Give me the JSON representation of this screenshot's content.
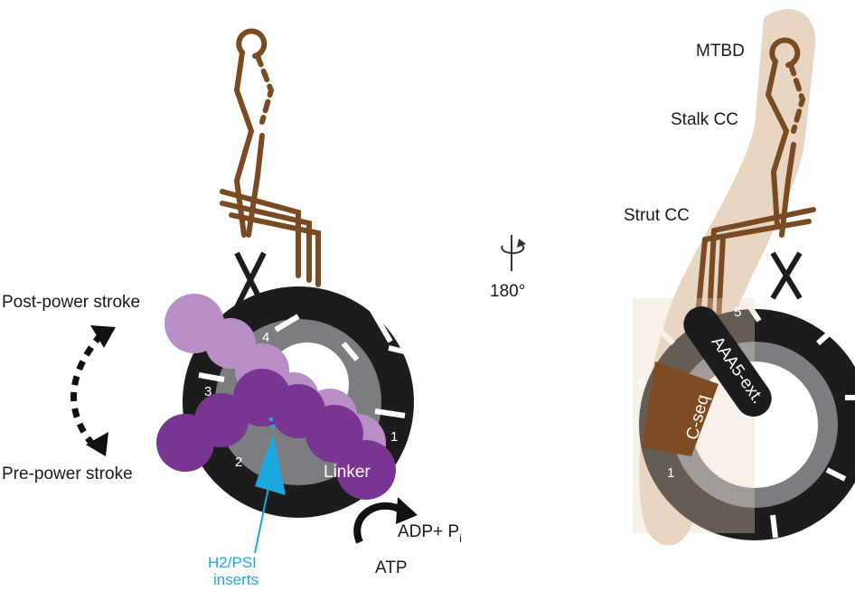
{
  "left_panel": {
    "post_power_stroke": "Post-power stroke",
    "pre_power_stroke": "Pre-power stroke",
    "linker": "Linker",
    "aaa_numbers": {
      "n1": "1",
      "n2": "2",
      "n3": "3",
      "n4": "4"
    },
    "adp_pi": "ADP+ P",
    "pi_subscript": "i",
    "atp": "ATP",
    "h2_psi": "H2/PSI",
    "inserts": "inserts"
  },
  "rotation": {
    "label": "180°"
  },
  "right_panel": {
    "mtbd": "MTBD",
    "stalk_cc": "Stalk CC",
    "strut_cc": "Strut CC",
    "aaa5_ext": "AAA5-ext.",
    "c_seq": "C-seq",
    "aaa_numbers": {
      "n1": "1",
      "n5": "5",
      "n6": "6"
    }
  },
  "colors": {
    "ring_dark": "#1c1c1c",
    "ring_gray": "#7b7d80",
    "stalk_brown": "#7a4a22",
    "linker_purple": "#7a3592",
    "linker_light": "#b78fc6",
    "insert_blue": "#1ea8e0",
    "beige_shade": "#e8d6c3",
    "cseq_brown": "#7f4b22"
  }
}
